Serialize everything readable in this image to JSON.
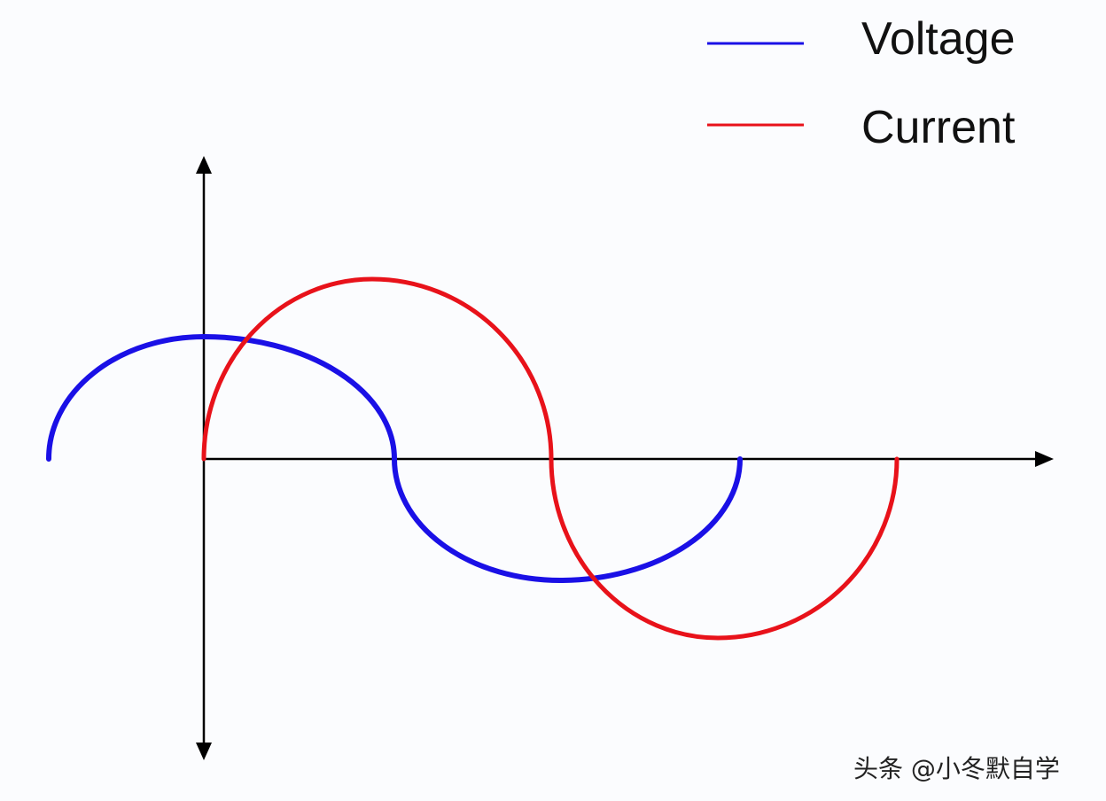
{
  "legend": [
    {
      "label": "Voltage",
      "color": "#1a10e6"
    },
    {
      "label": "Current",
      "color": "#e8121a"
    }
  ],
  "axis_color": "#000000",
  "watermark": "头条 @小冬默自学"
}
